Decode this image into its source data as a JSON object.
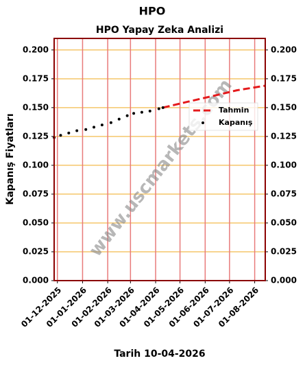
{
  "chart_data": {
    "type": "line",
    "title": "HPO",
    "subtitle": "HPO Yapay Zeka Analizi",
    "x_label": "Tarih 10-04-2026",
    "y_label": "Kapanış Fiyatları",
    "watermark": "www.uscmarkets.com",
    "xlim": [
      "2025-11-27",
      "2026-08-14"
    ],
    "ylim": [
      0,
      0.21
    ],
    "xticks": [
      {
        "value": "2025-12-01",
        "label": "01-12-2025"
      },
      {
        "value": "2026-01-01",
        "label": "01-01-2026"
      },
      {
        "value": "2026-02-01",
        "label": "01-02-2026"
      },
      {
        "value": "2026-03-01",
        "label": "01-03-2026"
      },
      {
        "value": "2026-04-01",
        "label": "01-04-2026"
      },
      {
        "value": "2026-05-01",
        "label": "01-05-2026"
      },
      {
        "value": "2026-06-01",
        "label": "01-06-2026"
      },
      {
        "value": "2026-07-01",
        "label": "01-07-2026"
      },
      {
        "value": "2026-08-01",
        "label": "01-08-2026"
      }
    ],
    "yticks": [
      {
        "value": 0,
        "label": "0.000"
      },
      {
        "value": 0.025,
        "label": "0.025"
      },
      {
        "value": 0.05,
        "label": "0.050"
      },
      {
        "value": 0.075,
        "label": "0.075"
      },
      {
        "value": 0.1,
        "label": "0.100"
      },
      {
        "value": 0.125,
        "label": "0.125"
      },
      {
        "value": 0.15,
        "label": "0.150"
      },
      {
        "value": 0.175,
        "label": "0.175"
      },
      {
        "value": 0.2,
        "label": "0.200"
      }
    ],
    "grid": true,
    "legend": "center right",
    "series": [
      {
        "name": "Tahmin",
        "color": "#e41a1c",
        "style": "dashed",
        "x": [
          "2026-04-10",
          "2026-05-10",
          "2026-06-10",
          "2026-07-10",
          "2026-08-14"
        ],
        "values": [
          0.15,
          0.155,
          0.16,
          0.165,
          0.169
        ]
      },
      {
        "name": "Kapanış",
        "color": "#000000",
        "style": "dots",
        "x": [
          "2025-11-27",
          "2025-12-05",
          "2025-12-15",
          "2025-12-25",
          "2026-01-05",
          "2026-01-15",
          "2026-01-25",
          "2026-02-05",
          "2026-02-15",
          "2026-02-25",
          "2026-03-05",
          "2026-03-15",
          "2026-03-25",
          "2026-04-05",
          "2026-04-10"
        ],
        "values": [
          0.124,
          0.126,
          0.128,
          0.13,
          0.131,
          0.133,
          0.135,
          0.137,
          0.14,
          0.143,
          0.145,
          0.146,
          0.147,
          0.149,
          0.15
        ]
      }
    ]
  }
}
